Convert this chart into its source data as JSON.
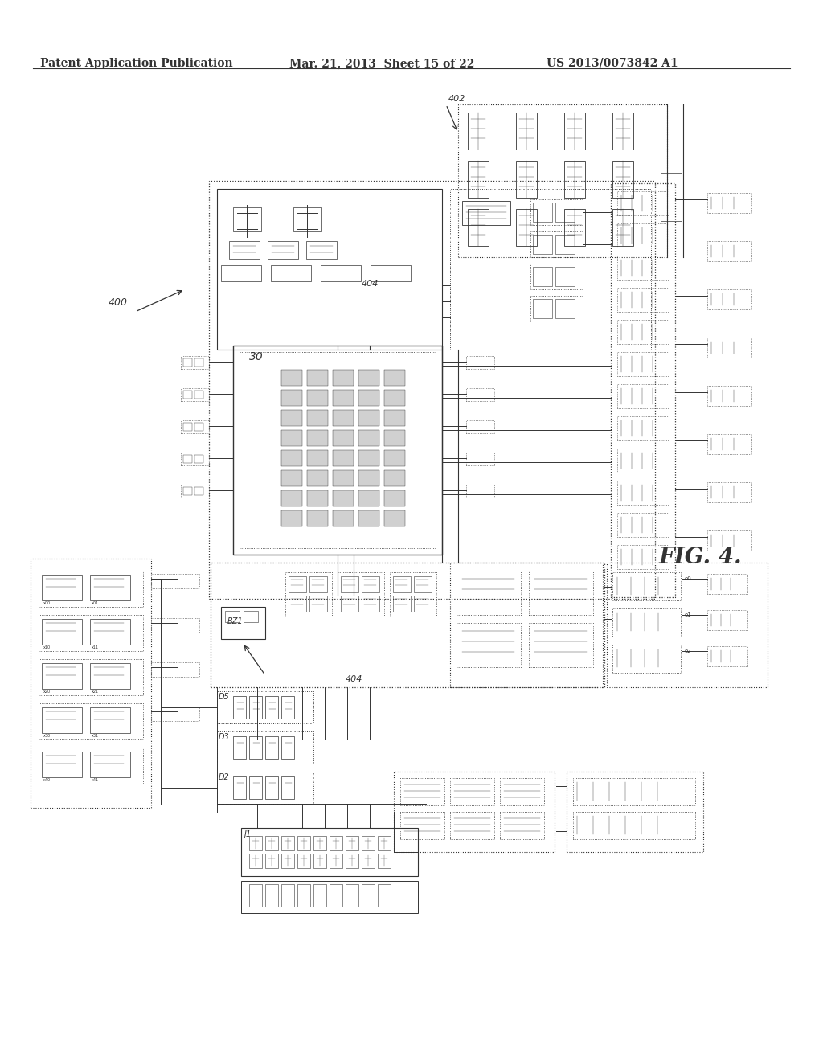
{
  "bg_color": "#ffffff",
  "header_left": "Patent Application Publication",
  "header_mid": "Mar. 21, 2013  Sheet 15 of 22",
  "header_right": "US 2013/0073842 A1",
  "fig_label": "FIG. 4.",
  "label_400": "400",
  "label_402": "402",
  "label_404": "404",
  "label_30": "30",
  "label_BZ4": "BZ1",
  "label_J1": "J1",
  "label_D2": "D2",
  "label_D3": "D3",
  "label_D5": "D5",
  "diagram_color": "#333333",
  "header_fontsize": 10
}
